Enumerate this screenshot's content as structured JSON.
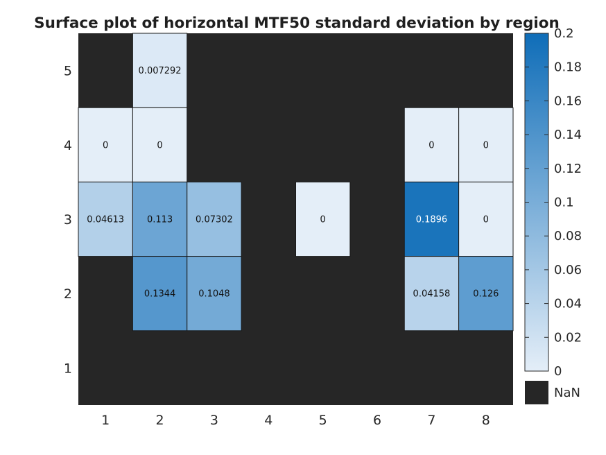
{
  "chart_data": {
    "type": "heatmap",
    "title": "Surface plot of horizontal MTF50 standard deviation by region",
    "x_ticks": [
      "1",
      "2",
      "3",
      "4",
      "5",
      "6",
      "7",
      "8"
    ],
    "y_ticks": [
      "1",
      "2",
      "3",
      "4",
      "5"
    ],
    "color_range": [
      0,
      0.2
    ],
    "colorbar_ticks": [
      "0",
      "0.02",
      "0.04",
      "0.06",
      "0.08",
      "0.1",
      "0.12",
      "0.14",
      "0.16",
      "0.18",
      "0.2"
    ],
    "colorbar_tick_values": [
      0,
      0.02,
      0.04,
      0.06,
      0.08,
      0.1,
      0.12,
      0.14,
      0.16,
      0.18,
      0.2
    ],
    "nan_label": "NaN",
    "nan_color": "#262626",
    "colormap": [
      "#e4eef8",
      "#0f6db8"
    ],
    "cells": [
      {
        "col": 2,
        "row": 5,
        "value": 0.007292,
        "label": "0.007292"
      },
      {
        "col": 1,
        "row": 4,
        "value": 0,
        "label": "0"
      },
      {
        "col": 2,
        "row": 4,
        "value": 0,
        "label": "0"
      },
      {
        "col": 7,
        "row": 4,
        "value": 0,
        "label": "0"
      },
      {
        "col": 8,
        "row": 4,
        "value": 0,
        "label": "0"
      },
      {
        "col": 1,
        "row": 3,
        "value": 0.04613,
        "label": "0.04613"
      },
      {
        "col": 2,
        "row": 3,
        "value": 0.113,
        "label": "0.113"
      },
      {
        "col": 3,
        "row": 3,
        "value": 0.07302,
        "label": "0.07302"
      },
      {
        "col": 5,
        "row": 3,
        "value": 0,
        "label": "0"
      },
      {
        "col": 7,
        "row": 3,
        "value": 0.1896,
        "label": "0.1896"
      },
      {
        "col": 8,
        "row": 3,
        "value": 0,
        "label": "0"
      },
      {
        "col": 2,
        "row": 2,
        "value": 0.1344,
        "label": "0.1344"
      },
      {
        "col": 3,
        "row": 2,
        "value": 0.1048,
        "label": "0.1048"
      },
      {
        "col": 7,
        "row": 2,
        "value": 0.04158,
        "label": "0.04158"
      },
      {
        "col": 8,
        "row": 2,
        "value": 0.126,
        "label": "0.126"
      }
    ]
  }
}
